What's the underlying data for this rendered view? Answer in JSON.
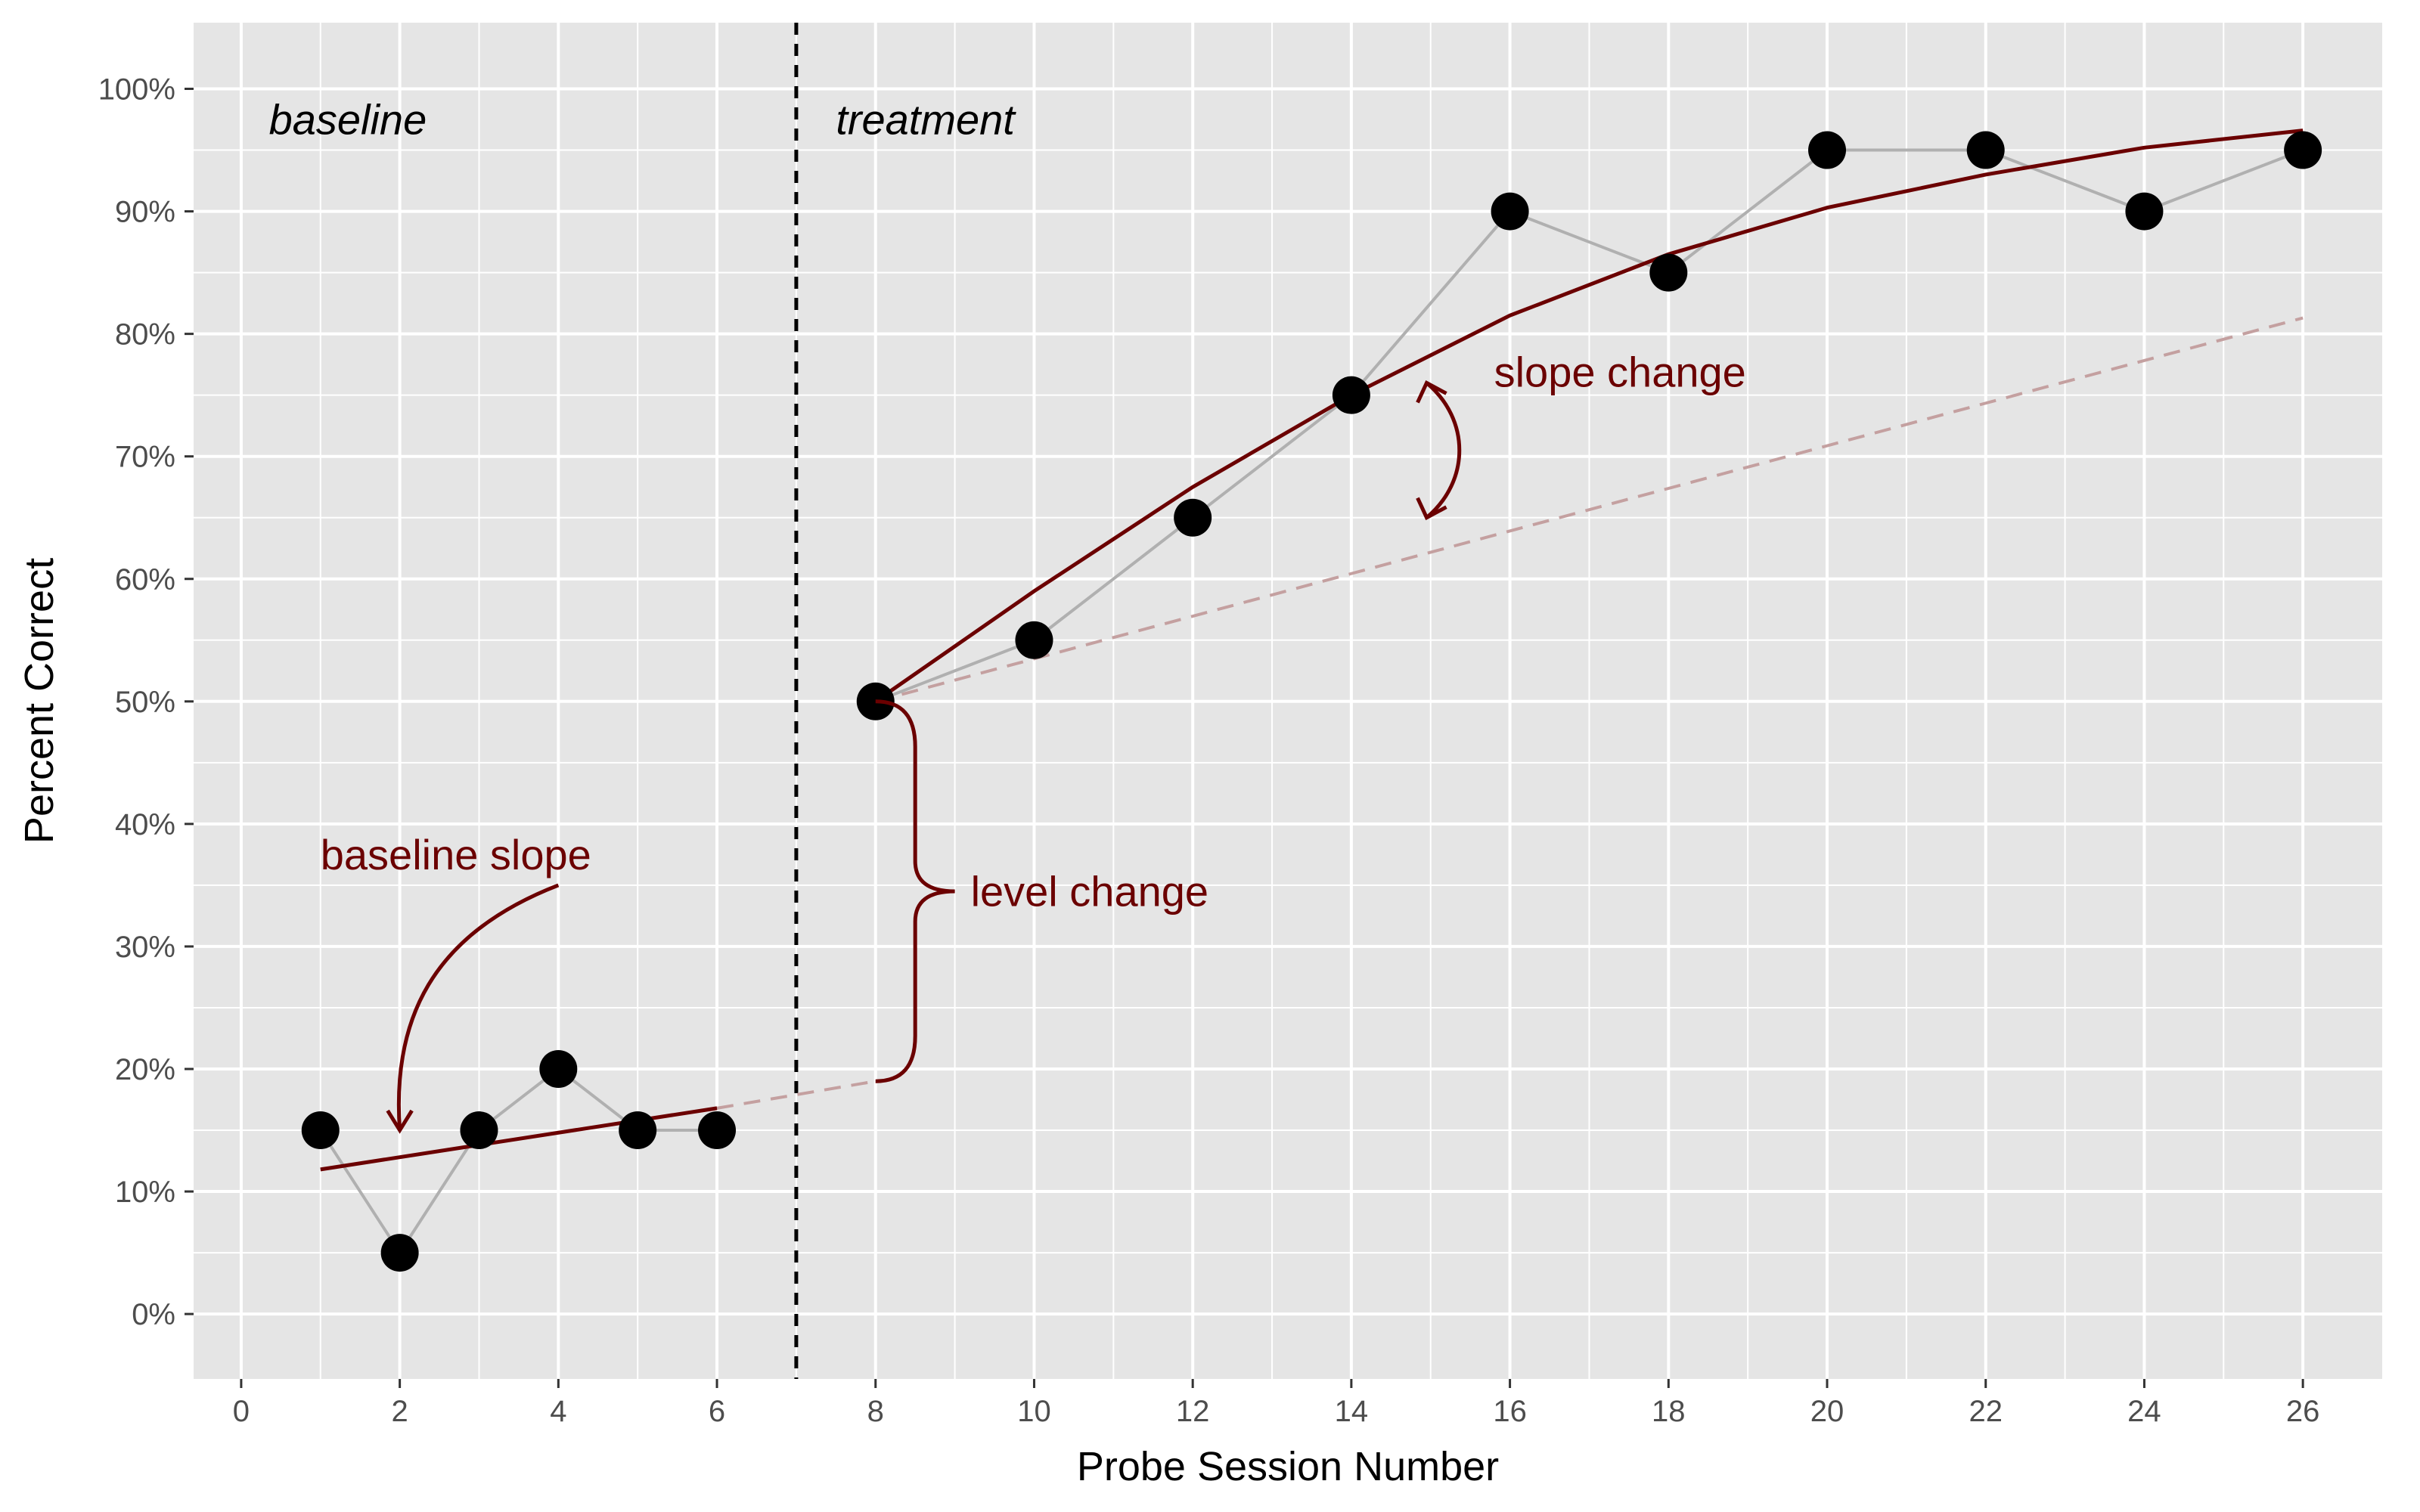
{
  "chart_data": {
    "type": "scatter",
    "title": "",
    "xlabel": "Probe Session Number",
    "ylabel": "Percent Correct",
    "xlim": [
      0,
      26
    ],
    "ylim": [
      0,
      100
    ],
    "x_ticks": [
      0,
      2,
      4,
      6,
      8,
      10,
      12,
      14,
      16,
      18,
      20,
      22,
      24,
      26
    ],
    "y_ticks": [
      0,
      10,
      20,
      30,
      40,
      50,
      60,
      70,
      80,
      90,
      100
    ],
    "y_tick_labels": [
      "0%",
      "10%",
      "20%",
      "30%",
      "40%",
      "50%",
      "60%",
      "70%",
      "80%",
      "90%",
      "100%"
    ],
    "grid": true,
    "phase_change_x": 7,
    "phases": [
      {
        "label": "baseline"
      },
      {
        "label": "treatment"
      }
    ],
    "series": [
      {
        "x": [
          1,
          2,
          3,
          4,
          5,
          6,
          8,
          10,
          12,
          14,
          16,
          18,
          20,
          22,
          24,
          26
        ],
        "y": [
          15,
          5,
          15,
          20,
          15,
          15,
          50,
          55,
          65,
          75,
          90,
          85,
          95,
          95,
          90,
          95
        ],
        "point_color": "#000000",
        "line_color": "#b0b0b0"
      }
    ],
    "baseline_trend": {
      "x": [
        1,
        6
      ],
      "y": [
        11.8,
        16.8
      ],
      "color": "#6b0000"
    },
    "baseline_projection": {
      "x": [
        6,
        8
      ],
      "y": [
        16.8,
        19
      ],
      "color": "#c4a0a0",
      "dashed": true
    },
    "treatment_trend": {
      "x": [
        8,
        10,
        12,
        14,
        16,
        18,
        20,
        22,
        24,
        26
      ],
      "y": [
        50,
        59,
        67.5,
        75,
        81.5,
        86.5,
        90.3,
        93,
        95.2,
        96.6
      ],
      "color": "#6b0000"
    },
    "treatment_projection": {
      "x": [
        8,
        26
      ],
      "y": [
        50,
        81.3
      ],
      "color": "#c4a0a0",
      "dashed": true
    },
    "annotations": [
      {
        "text": "baseline slope"
      },
      {
        "text": "level change"
      },
      {
        "text": "slope change"
      }
    ],
    "colors": {
      "panel": "#e5e5e5",
      "grid": "#ffffff",
      "annotation": "#6b0000"
    }
  }
}
